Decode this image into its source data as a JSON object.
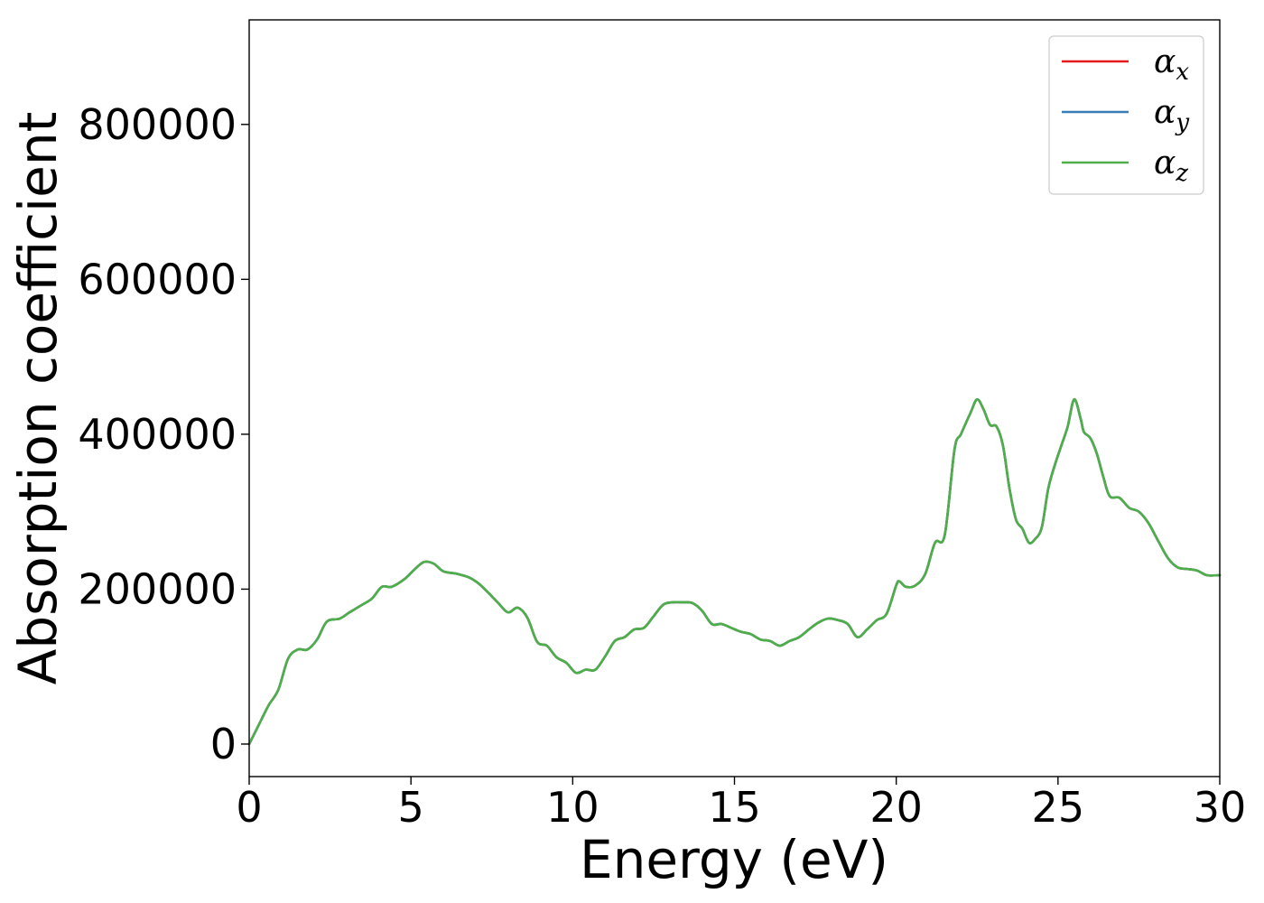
{
  "chart_data": {
    "type": "line",
    "title": "",
    "xlabel": "Energy (eV)",
    "ylabel": "Absorption coefficient",
    "xlim": [
      0,
      30
    ],
    "ylim": [
      -42000,
      935000
    ],
    "xticks": [
      0,
      5,
      10,
      15,
      20,
      25,
      30
    ],
    "xtick_labels": [
      "0",
      "5",
      "10",
      "15",
      "20",
      "25",
      "30"
    ],
    "yticks": [
      0,
      200000,
      400000,
      600000,
      800000
    ],
    "ytick_labels": [
      "0",
      "200000",
      "400000",
      "600000",
      "800000"
    ],
    "grid": false,
    "legend_position": "top-right",
    "series": [
      {
        "name": "α_x",
        "legend_base": "α",
        "legend_sub": "x",
        "color": "#e41a1c",
        "x": [
          0,
          0.3,
          0.6,
          0.9,
          1.2,
          1.5,
          1.8,
          2.1,
          2.4,
          2.8,
          3.1,
          3.5,
          3.8,
          4.1,
          4.4,
          4.8,
          5.1,
          5.4,
          5.7,
          6.0,
          6.4,
          6.8,
          7.1,
          7.4,
          7.7,
          8.0,
          8.3,
          8.6,
          8.9,
          9.2,
          9.5,
          9.8,
          10.1,
          10.4,
          10.7,
          11.0,
          11.3,
          11.6,
          11.9,
          12.2,
          12.5,
          12.8,
          13.1,
          13.4,
          13.7,
          14.0,
          14.3,
          14.6,
          14.9,
          15.2,
          15.5,
          15.8,
          16.1,
          16.4,
          16.7,
          17.0,
          17.3,
          17.6,
          17.9,
          18.2,
          18.5,
          18.8,
          19.1,
          19.4,
          19.7,
          20.0,
          20.1,
          20.3,
          20.6,
          20.9,
          21.2,
          21.5,
          21.8,
          22.0,
          22.3,
          22.5,
          22.7,
          22.9,
          23.1,
          23.3,
          23.5,
          23.7,
          23.9,
          24.1,
          24.3,
          24.5,
          24.7,
          24.9,
          25.1,
          25.3,
          25.5,
          25.7,
          25.8,
          26.0,
          26.2,
          26.4,
          26.6,
          26.9,
          27.2,
          27.5,
          27.8,
          28.1,
          28.4,
          28.7,
          29.0,
          29.3,
          29.6,
          30.0
        ],
        "y": [
          0,
          25000,
          50000,
          70000,
          110000,
          122000,
          122000,
          135000,
          158000,
          162000,
          170000,
          180000,
          188000,
          203000,
          203000,
          213000,
          225000,
          235000,
          233000,
          223000,
          220000,
          215000,
          207000,
          195000,
          182000,
          170000,
          176000,
          163000,
          132000,
          127000,
          112000,
          105000,
          92000,
          96000,
          96000,
          113000,
          133000,
          138000,
          148000,
          150000,
          165000,
          180000,
          183000,
          183000,
          182000,
          172000,
          155000,
          155000,
          150000,
          145000,
          142000,
          135000,
          133000,
          127000,
          133000,
          138000,
          148000,
          157000,
          162000,
          160000,
          155000,
          138000,
          148000,
          160000,
          168000,
          205000,
          210000,
          203000,
          205000,
          220000,
          260000,
          270000,
          380000,
          400000,
          428000,
          445000,
          432000,
          412000,
          410000,
          385000,
          330000,
          290000,
          278000,
          260000,
          265000,
          280000,
          330000,
          360000,
          385000,
          410000,
          445000,
          420000,
          403000,
          395000,
          375000,
          345000,
          320000,
          318000,
          305000,
          300000,
          285000,
          262000,
          240000,
          228000,
          226000,
          224000,
          218000,
          218000
        ]
      },
      {
        "name": "α_y",
        "legend_base": "α",
        "legend_sub": "y",
        "color": "#377eb8",
        "same_as": "α_x"
      },
      {
        "name": "α_z",
        "legend_base": "α",
        "legend_sub": "z",
        "color": "#4daf4a",
        "same_as": "α_x"
      }
    ]
  }
}
